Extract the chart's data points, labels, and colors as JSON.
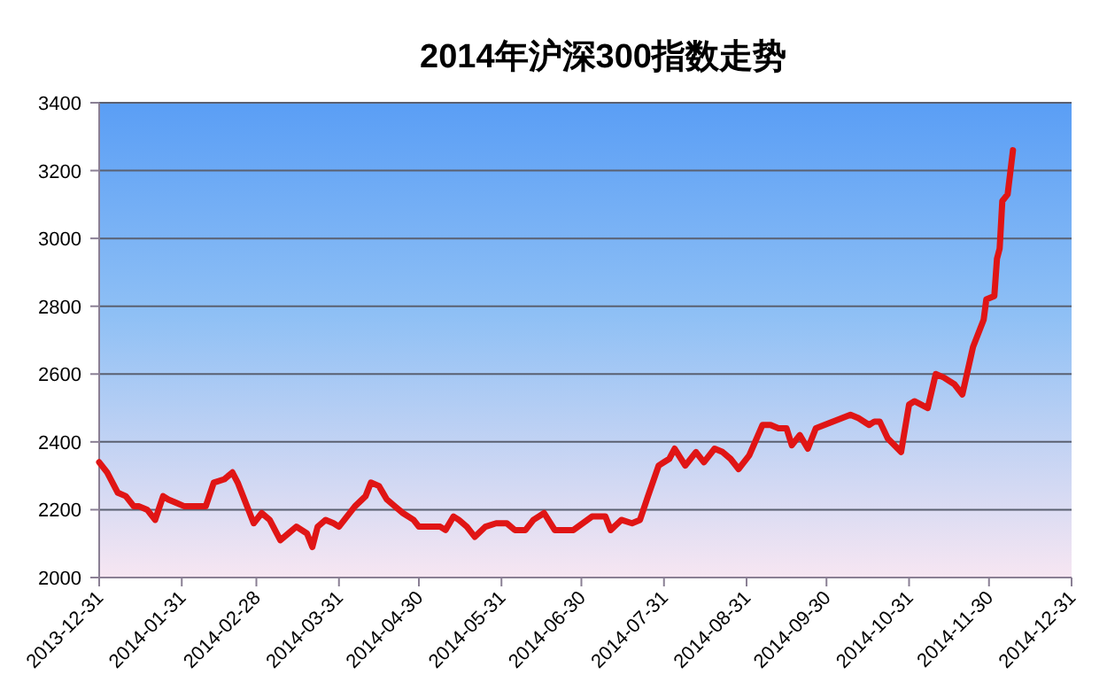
{
  "chart_data": {
    "type": "line",
    "title": "2014年沪深300指数走势",
    "x": [
      "2013-12-31",
      "2014-01-03",
      "2014-01-07",
      "2014-01-10",
      "2014-01-13",
      "2014-01-15",
      "2014-01-18",
      "2014-01-21",
      "2014-01-24",
      "2014-01-26",
      "2014-01-29",
      "2014-02-01",
      "2014-02-09",
      "2014-02-12",
      "2014-02-16",
      "2014-02-19",
      "2014-02-21",
      "2014-02-24",
      "2014-02-27",
      "2014-03-02",
      "2014-03-05",
      "2014-03-09",
      "2014-03-12",
      "2014-03-15",
      "2014-03-19",
      "2014-03-21",
      "2014-03-23",
      "2014-03-26",
      "2014-03-29",
      "2014-03-31",
      "2014-04-03",
      "2014-04-06",
      "2014-04-10",
      "2014-04-12",
      "2014-04-15",
      "2014-04-18",
      "2014-04-21",
      "2014-04-24",
      "2014-04-28",
      "2014-04-30",
      "2014-05-03",
      "2014-05-08",
      "2014-05-10",
      "2014-05-13",
      "2014-05-15",
      "2014-05-18",
      "2014-05-21",
      "2014-05-25",
      "2014-05-29",
      "2014-06-02",
      "2014-06-05",
      "2014-06-09",
      "2014-06-12",
      "2014-06-16",
      "2014-06-20",
      "2014-06-24",
      "2014-06-27",
      "2014-07-04",
      "2014-07-09",
      "2014-07-11",
      "2014-07-15",
      "2014-07-19",
      "2014-07-22",
      "2014-07-25",
      "2014-07-29",
      "2014-07-31",
      "2014-08-02",
      "2014-08-04",
      "2014-08-08",
      "2014-08-12",
      "2014-08-15",
      "2014-08-19",
      "2014-08-22",
      "2014-08-25",
      "2014-08-28",
      "2014-09-01",
      "2014-09-06",
      "2014-09-09",
      "2014-09-12",
      "2014-09-15",
      "2014-09-17",
      "2014-09-20",
      "2014-09-23",
      "2014-09-26",
      "2014-10-09",
      "2014-10-12",
      "2014-10-16",
      "2014-10-18",
      "2014-10-20",
      "2014-10-23",
      "2014-10-28",
      "2014-10-31",
      "2014-11-02",
      "2014-11-07",
      "2014-11-10",
      "2014-11-13",
      "2014-11-17",
      "2014-11-20",
      "2014-11-24",
      "2014-11-28",
      "2014-11-29",
      "2014-12-02",
      "2014-12-03",
      "2014-12-04",
      "2014-12-05",
      "2014-12-07",
      "2014-12-09"
    ],
    "series": [
      {
        "color": "#e01515",
        "values": [
          2340,
          2310,
          2250,
          2240,
          2210,
          2210,
          2200,
          2170,
          2240,
          2230,
          2220,
          2210,
          2210,
          2280,
          2290,
          2310,
          2280,
          2220,
          2160,
          2190,
          2170,
          2110,
          2130,
          2150,
          2130,
          2090,
          2150,
          2170,
          2160,
          2150,
          2180,
          2210,
          2240,
          2280,
          2270,
          2230,
          2210,
          2190,
          2170,
          2150,
          2150,
          2150,
          2140,
          2180,
          2170,
          2150,
          2120,
          2150,
          2160,
          2160,
          2140,
          2140,
          2170,
          2190,
          2140,
          2140,
          2140,
          2180,
          2180,
          2140,
          2170,
          2160,
          2170,
          2240,
          2330,
          2340,
          2350,
          2380,
          2330,
          2370,
          2340,
          2380,
          2370,
          2350,
          2320,
          2360,
          2450,
          2450,
          2440,
          2440,
          2390,
          2420,
          2380,
          2440,
          2480,
          2470,
          2450,
          2460,
          2460,
          2410,
          2370,
          2510,
          2520,
          2500,
          2600,
          2590,
          2570,
          2540,
          2680,
          2760,
          2820,
          2830,
          2940,
          2970,
          3110,
          3130,
          3260
        ]
      }
    ],
    "xlim": [
      "2013-12-31",
      "2014-12-31"
    ],
    "xticks": [
      "2013-12-31",
      "2014-01-31",
      "2014-02-28",
      "2014-03-31",
      "2014-04-30",
      "2014-05-31",
      "2014-06-30",
      "2014-07-31",
      "2014-08-31",
      "2014-09-30",
      "2014-10-31",
      "2014-11-30",
      "2014-12-31"
    ],
    "ylim": [
      2000,
      3400
    ],
    "yticks": [
      2000,
      2200,
      2400,
      2600,
      2800,
      3000,
      3200,
      3400
    ],
    "grid": "y",
    "marker": "none",
    "line_style": "solid"
  }
}
